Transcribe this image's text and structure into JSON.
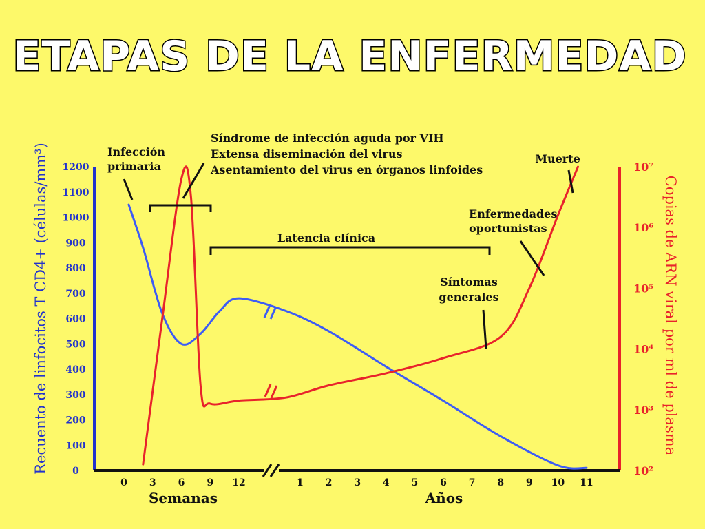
{
  "title": "ETAPAS DE LA ENFERMEDAD",
  "colors": {
    "background": "#FDF96A",
    "cd4": "#3D5CF5",
    "viral": "#E8232B",
    "text": "#111111"
  },
  "annotations": {
    "primary_infection": [
      "Infección",
      "primaria"
    ],
    "acute_syndrome": [
      "Síndrome de infección aguda por VIH",
      "Extensa diseminación del virus",
      "Asentamiento del virus en órganos linfoides"
    ],
    "latency": "Latencia clínica",
    "death": "Muerte",
    "opportunistic": [
      "Enfermedades",
      "oportunistas"
    ],
    "symptoms": [
      "Síntomas",
      "generales"
    ]
  },
  "chart_data": {
    "type": "line",
    "title": "ETAPAS DE LA ENFERMEDAD",
    "y_left": {
      "label": "Recuento de linfocitos T CD4+ (células/mm³)",
      "ticks": [
        "0",
        "100",
        "200",
        "300",
        "400",
        "500",
        "600",
        "700",
        "800",
        "900",
        "1000",
        "1100",
        "1200"
      ],
      "range": [
        0,
        1200
      ]
    },
    "y_right": {
      "label": "Copias de ARN viral por ml de plasma",
      "ticks": [
        "10²",
        "10³",
        "10⁴",
        "10⁵",
        "10⁶",
        "10⁷"
      ],
      "scale": "log",
      "range_exponent": [
        2,
        7
      ]
    },
    "x": {
      "semanas": {
        "label": "Semanas",
        "ticks": [
          "0",
          "3",
          "6",
          "9",
          "12"
        ]
      },
      "anos": {
        "label": "Años",
        "ticks": [
          "1",
          "2",
          "3",
          "4",
          "5",
          "6",
          "7",
          "8",
          "9",
          "10",
          "11"
        ]
      },
      "axis_break": true
    },
    "series": [
      {
        "color": "#3D5CF5",
        "axis": "left",
        "points": [
          {
            "t": "w0.5",
            "x": 0.5,
            "y": 1050
          },
          {
            "t": "w2",
            "x": 2,
            "y": 880
          },
          {
            "t": "w4",
            "x": 4,
            "y": 620
          },
          {
            "t": "w6",
            "x": 6,
            "y": 500
          },
          {
            "t": "w8",
            "x": 8,
            "y": 540
          },
          {
            "t": "w10",
            "x": 10,
            "y": 630
          },
          {
            "t": "w12",
            "x": 12,
            "y": 680
          },
          {
            "t": "y0.5",
            "x": 0.5,
            "y": 630
          },
          {
            "t": "y2",
            "x": 2,
            "y": 550
          },
          {
            "t": "y4",
            "x": 4,
            "y": 410
          },
          {
            "t": "y6",
            "x": 6,
            "y": 275
          },
          {
            "t": "y8",
            "x": 8,
            "y": 135
          },
          {
            "t": "y10",
            "x": 10,
            "y": 20
          },
          {
            "t": "y11",
            "x": 11,
            "y": 10
          }
        ]
      },
      {
        "color": "#E8232B",
        "axis": "right",
        "points": [
          {
            "t": "w2",
            "x": 2,
            "y": 2.1
          },
          {
            "t": "w4",
            "x": 4,
            "y": 4.5
          },
          {
            "t": "w6",
            "x": 6,
            "y": 6.8
          },
          {
            "t": "w7",
            "x": 7,
            "y": 6.5
          },
          {
            "t": "w8",
            "x": 8,
            "y": 3.4
          },
          {
            "t": "w9",
            "x": 9,
            "y": 3.1
          },
          {
            "t": "w12",
            "x": 12,
            "y": 3.15
          },
          {
            "t": "y0.5",
            "x": 0.5,
            "y": 3.2
          },
          {
            "t": "y2",
            "x": 2,
            "y": 3.4
          },
          {
            "t": "y4",
            "x": 4,
            "y": 3.6
          },
          {
            "t": "y6",
            "x": 6,
            "y": 3.85
          },
          {
            "t": "y8",
            "x": 8,
            "y": 4.2
          },
          {
            "t": "y9",
            "x": 9,
            "y": 5.0
          },
          {
            "t": "y10",
            "x": 10,
            "y": 6.2
          },
          {
            "t": "y10.7",
            "x": 10.7,
            "y": 7.0
          }
        ]
      }
    ],
    "grid": false
  }
}
